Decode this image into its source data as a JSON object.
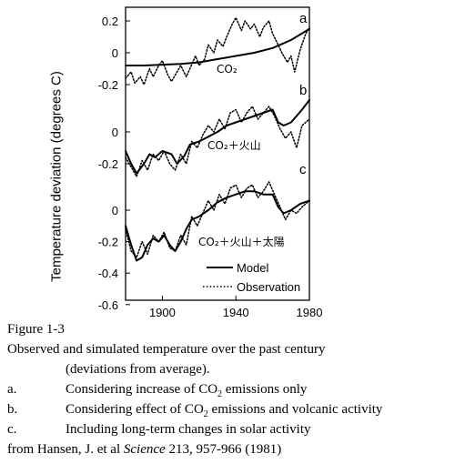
{
  "chart_data": {
    "type": "line",
    "ylabel": "Temperature deviation (degrees C)",
    "x_ticks": [
      "1900",
      "1940",
      "1980"
    ],
    "xlim": [
      1880,
      1980
    ],
    "panels": [
      {
        "id": "a",
        "annotation": "CO₂",
        "y_ticks": [
          "0.2",
          "0",
          "-0.2"
        ],
        "y_tick_values": [
          0.2,
          0.0,
          -0.2
        ],
        "series": [
          {
            "name": "Model",
            "style": "solid",
            "x": [
              1880,
              1890,
              1900,
              1910,
              1920,
              1930,
              1940,
              1950,
              1960,
              1970,
              1980
            ],
            "y": [
              -0.08,
              -0.08,
              -0.075,
              -0.07,
              -0.06,
              -0.04,
              -0.02,
              0.0,
              0.03,
              0.08,
              0.15
            ]
          },
          {
            "name": "Observation",
            "style": "dotted",
            "x": [
              1880,
              1883,
              1885,
              1888,
              1890,
              1893,
              1895,
              1898,
              1900,
              1903,
              1905,
              1908,
              1910,
              1913,
              1915,
              1918,
              1920,
              1923,
              1925,
              1928,
              1930,
              1933,
              1935,
              1938,
              1940,
              1943,
              1945,
              1948,
              1950,
              1953,
              1955,
              1958,
              1960,
              1963,
              1965,
              1968,
              1970,
              1972,
              1975,
              1978,
              1980
            ],
            "y": [
              -0.16,
              -0.12,
              -0.19,
              -0.15,
              -0.2,
              -0.1,
              -0.15,
              -0.08,
              -0.05,
              -0.14,
              -0.18,
              -0.12,
              -0.08,
              -0.15,
              -0.1,
              -0.02,
              -0.08,
              -0.04,
              0.05,
              0.0,
              0.08,
              0.04,
              0.1,
              0.18,
              0.22,
              0.14,
              0.2,
              0.15,
              0.18,
              0.1,
              0.16,
              0.2,
              0.12,
              0.05,
              0.0,
              -0.06,
              -0.02,
              -0.12,
              0.02,
              0.12,
              0.16
            ]
          }
        ]
      },
      {
        "id": "b",
        "annotation": "CO₂＋火山",
        "y_ticks": [
          "0",
          "-0.2"
        ],
        "y_tick_values": [
          0.0,
          -0.2
        ],
        "series": [
          {
            "name": "Model",
            "style": "solid",
            "x": [
              1880,
              1883,
              1886,
              1890,
              1893,
              1896,
              1900,
              1905,
              1908,
              1912,
              1915,
              1920,
              1925,
              1930,
              1935,
              1940,
              1945,
              1950,
              1955,
              1960,
              1963,
              1966,
              1970,
              1973,
              1976,
              1980
            ],
            "y": [
              -0.12,
              -0.2,
              -0.26,
              -0.2,
              -0.14,
              -0.16,
              -0.12,
              -0.14,
              -0.2,
              -0.15,
              -0.08,
              -0.06,
              -0.03,
              0.0,
              0.04,
              0.06,
              0.08,
              0.1,
              0.12,
              0.14,
              0.06,
              0.04,
              0.06,
              0.1,
              0.14,
              0.2
            ]
          },
          {
            "name": "Observation",
            "style": "dotted",
            "x": [
              1880,
              1883,
              1886,
              1889,
              1892,
              1895,
              1898,
              1901,
              1904,
              1907,
              1910,
              1913,
              1916,
              1919,
              1922,
              1925,
              1928,
              1931,
              1934,
              1937,
              1940,
              1943,
              1946,
              1949,
              1952,
              1955,
              1958,
              1961,
              1964,
              1967,
              1970,
              1973,
              1976,
              1980
            ],
            "y": [
              -0.16,
              -0.22,
              -0.28,
              -0.18,
              -0.24,
              -0.14,
              -0.18,
              -0.12,
              -0.2,
              -0.24,
              -0.14,
              -0.2,
              -0.06,
              -0.1,
              -0.02,
              0.04,
              0.0,
              0.08,
              0.02,
              0.12,
              0.14,
              0.06,
              0.12,
              0.16,
              0.08,
              0.12,
              0.16,
              0.1,
              0.02,
              -0.04,
              0.0,
              -0.1,
              0.04,
              0.08
            ]
          }
        ]
      },
      {
        "id": "c",
        "annotation": "CO₂＋火山＋太陽",
        "y_ticks": [
          "0",
          "-0.2",
          "-0.4",
          "-0.6"
        ],
        "y_tick_values": [
          0.0,
          -0.2,
          -0.4,
          -0.6
        ],
        "series": [
          {
            "name": "Model",
            "style": "solid",
            "x": [
              1880,
              1883,
              1886,
              1889,
              1892,
              1895,
              1898,
              1901,
              1904,
              1907,
              1910,
              1913,
              1916,
              1920,
              1925,
              1930,
              1935,
              1940,
              1945,
              1950,
              1955,
              1960,
              1963,
              1966,
              1970,
              1975,
              1980
            ],
            "y": [
              -0.1,
              -0.22,
              -0.32,
              -0.3,
              -0.22,
              -0.18,
              -0.2,
              -0.16,
              -0.22,
              -0.26,
              -0.2,
              -0.12,
              -0.06,
              -0.04,
              0.0,
              0.05,
              0.08,
              0.1,
              0.12,
              0.12,
              0.1,
              0.1,
              0.02,
              -0.02,
              0.0,
              0.04,
              0.06
            ]
          },
          {
            "name": "Observation",
            "style": "dotted",
            "x": [
              1880,
              1883,
              1886,
              1889,
              1892,
              1895,
              1898,
              1901,
              1904,
              1907,
              1910,
              1913,
              1916,
              1919,
              1922,
              1925,
              1928,
              1931,
              1934,
              1937,
              1940,
              1943,
              1946,
              1949,
              1952,
              1955,
              1958,
              1961,
              1964,
              1967,
              1970,
              1973,
              1976,
              1980
            ],
            "y": [
              -0.12,
              -0.26,
              -0.3,
              -0.2,
              -0.28,
              -0.16,
              -0.2,
              -0.14,
              -0.24,
              -0.26,
              -0.16,
              -0.22,
              -0.04,
              -0.1,
              -0.02,
              0.06,
              0.0,
              0.1,
              0.04,
              0.14,
              0.16,
              0.08,
              0.14,
              0.16,
              0.08,
              0.12,
              0.18,
              0.1,
              0.02,
              -0.06,
              0.0,
              -0.02,
              0.02,
              0.06
            ]
          }
        ]
      }
    ],
    "legend": {
      "placement": "bottom-right",
      "entries": [
        "Model",
        "Observation"
      ]
    }
  },
  "caption": {
    "figure_label": "Figure 1-3",
    "description_line1": "Observed and simulated temperature over the past century",
    "description_line2": "(deviations from average).",
    "items": [
      {
        "label": "a.",
        "pre": "Considering increase of CO",
        "sub": "2",
        "post": " emissions only"
      },
      {
        "label": "b.",
        "pre": "Considering effect of CO",
        "sub": "2",
        "post": " emissions and volcanic activity"
      },
      {
        "label": "c.",
        "pre": "Including long-term changes in solar activity",
        "sub": "",
        "post": ""
      }
    ],
    "source_pre": "from Hansen, J. et al ",
    "source_journal": "Science",
    "source_post": " 213, 957-966 (1981)"
  }
}
